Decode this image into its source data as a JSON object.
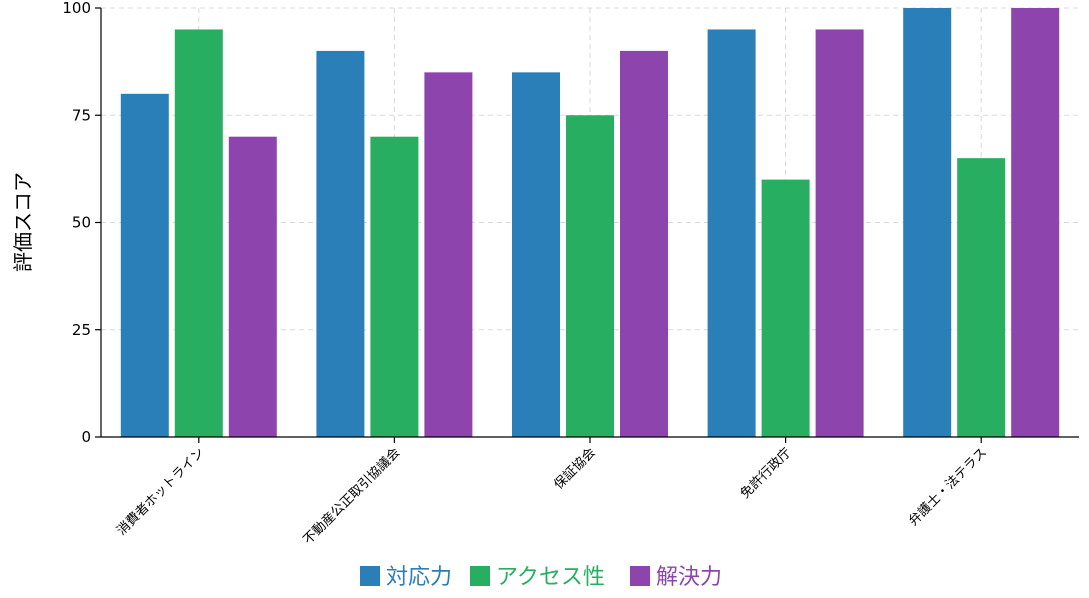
{
  "chart_data": {
    "type": "bar",
    "title": "",
    "xlabel": "",
    "ylabel": "評価スコア",
    "categories": [
      "消費者ホットライン",
      "不動産公正取引協議会",
      "保証協会",
      "免許行政庁",
      "弁護士・法テラス"
    ],
    "series": [
      {
        "name": "対応力",
        "color": "#2a7fb8",
        "values": [
          80,
          90,
          85,
          95,
          100
        ]
      },
      {
        "name": "アクセス性",
        "color": "#27ae60",
        "values": [
          95,
          70,
          75,
          60,
          65
        ]
      },
      {
        "name": "解決力",
        "color": "#8e44ad",
        "values": [
          70,
          85,
          90,
          95,
          100
        ]
      }
    ],
    "ylim": [
      0,
      100
    ],
    "yticks": [
      "0",
      "25",
      "50",
      "75",
      "100"
    ],
    "grid": true,
    "legend_position": "bottom-center"
  }
}
